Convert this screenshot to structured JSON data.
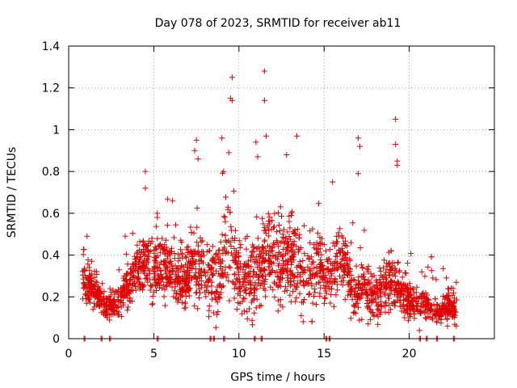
{
  "chart_data": {
    "type": "scatter",
    "title": "Day 078 of 2023, SRMTID for receiver ab11",
    "xlabel": "GPS time / hours",
    "ylabel": "SRMTID / TECUs",
    "xlim": [
      0,
      25
    ],
    "ylim": [
      0,
      1.4
    ],
    "xticks": [
      0,
      5,
      10,
      15,
      20
    ],
    "xtick_labels": [
      "0",
      "5",
      "10",
      "15",
      "20"
    ],
    "yticks": [
      0,
      0.2,
      0.4,
      0.6,
      0.8,
      1.0,
      1.2,
      1.4
    ],
    "ytick_labels": [
      "0",
      "0.2",
      "0.4",
      "0.6",
      "0.8",
      "1",
      "1.2",
      "1.4"
    ],
    "grid": true,
    "marker": "+",
    "color": "#e00000",
    "profile_hours": [
      0.8,
      1.5,
      2.0,
      2.6,
      3.0,
      3.5,
      4.0,
      4.4,
      4.8,
      5.3,
      5.8,
      6.3,
      6.8,
      7.3,
      7.8,
      8.3,
      8.8,
      9.3,
      9.8,
      10.3,
      10.8,
      11.3,
      11.8,
      12.3,
      12.8,
      13.3,
      13.8,
      14.3,
      14.8,
      15.3,
      15.8,
      16.3,
      16.8,
      17.3,
      17.8,
      18.3,
      18.8,
      19.3,
      19.8,
      20.3,
      20.8,
      21.3,
      21.8,
      22.3,
      22.8
    ],
    "profile_median_tecu": [
      0.28,
      0.24,
      0.17,
      0.16,
      0.19,
      0.26,
      0.32,
      0.38,
      0.36,
      0.33,
      0.34,
      0.3,
      0.27,
      0.36,
      0.33,
      0.25,
      0.33,
      0.42,
      0.36,
      0.27,
      0.3,
      0.36,
      0.4,
      0.36,
      0.37,
      0.38,
      0.3,
      0.32,
      0.35,
      0.3,
      0.36,
      0.34,
      0.2,
      0.25,
      0.2,
      0.22,
      0.25,
      0.24,
      0.2,
      0.17,
      0.18,
      0.14,
      0.12,
      0.16,
      0.14
    ],
    "profile_spread_tecu": [
      0.06,
      0.07,
      0.05,
      0.04,
      0.05,
      0.07,
      0.09,
      0.1,
      0.1,
      0.1,
      0.1,
      0.09,
      0.09,
      0.12,
      0.11,
      0.11,
      0.13,
      0.14,
      0.13,
      0.12,
      0.13,
      0.14,
      0.14,
      0.14,
      0.14,
      0.14,
      0.12,
      0.11,
      0.11,
      0.1,
      0.1,
      0.1,
      0.08,
      0.1,
      0.08,
      0.08,
      0.09,
      0.09,
      0.07,
      0.05,
      0.05,
      0.04,
      0.04,
      0.05,
      0.04
    ],
    "outliers": [
      {
        "x": 4.5,
        "y": 0.8
      },
      {
        "x": 4.5,
        "y": 0.72
      },
      {
        "x": 5.2,
        "y": 0.6
      },
      {
        "x": 6.1,
        "y": 0.66
      },
      {
        "x": 7.5,
        "y": 0.95
      },
      {
        "x": 7.4,
        "y": 0.9
      },
      {
        "x": 7.6,
        "y": 0.86
      },
      {
        "x": 9.0,
        "y": 0.96
      },
      {
        "x": 9.1,
        "y": 0.8
      },
      {
        "x": 9.6,
        "y": 1.25
      },
      {
        "x": 9.5,
        "y": 1.15
      },
      {
        "x": 9.6,
        "y": 1.14
      },
      {
        "x": 9.4,
        "y": 0.89
      },
      {
        "x": 11.0,
        "y": 0.94
      },
      {
        "x": 11.1,
        "y": 0.87
      },
      {
        "x": 11.5,
        "y": 1.28
      },
      {
        "x": 11.5,
        "y": 1.14
      },
      {
        "x": 11.6,
        "y": 0.97
      },
      {
        "x": 13.4,
        "y": 0.97
      },
      {
        "x": 12.8,
        "y": 0.88
      },
      {
        "x": 15.5,
        "y": 0.75
      },
      {
        "x": 17.0,
        "y": 0.96
      },
      {
        "x": 17.1,
        "y": 0.92
      },
      {
        "x": 17.0,
        "y": 0.79
      },
      {
        "x": 19.2,
        "y": 1.05
      },
      {
        "x": 19.2,
        "y": 0.93
      },
      {
        "x": 19.3,
        "y": 0.85
      },
      {
        "x": 19.3,
        "y": 0.83
      },
      {
        "x": 20.6,
        "y": 0.04
      }
    ],
    "zero_markers_x": [
      0.9,
      1.9,
      2.4,
      5.2,
      8.3,
      8.5,
      9.1,
      10.9,
      11.3,
      15.1,
      15.3,
      20.6,
      21.0,
      21.6,
      22.6
    ]
  }
}
